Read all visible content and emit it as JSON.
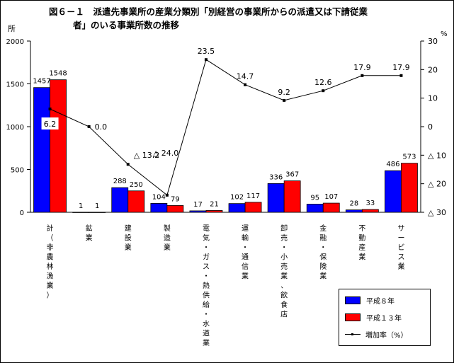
{
  "title": {
    "line1": "図６－１　派遣先事業所の産業分類別「別経営の事業所からの派遣又は下請従業",
    "line2": "者」のいる事業所数の推移"
  },
  "chart_data": {
    "type": "bar",
    "title": "図６－１　派遣先事業所の産業分類別「別経営の事業所からの派遣又は下請従業者」のいる事業所数の推移",
    "categories": [
      "計（非農林漁業）",
      "鉱業",
      "建設業",
      "製造業",
      "電気・ガス・熱供給・水道業",
      "運輸・通信業",
      "卸売・小売業、飲食店",
      "金融・保険業",
      "不動産業",
      "サービス業"
    ],
    "series": [
      {
        "name": "平成８年",
        "type": "bar",
        "color": "#0000ff",
        "axis": "left",
        "values": [
          1457,
          1,
          288,
          104,
          17,
          102,
          336,
          95,
          28,
          486
        ]
      },
      {
        "name": "平成１３年",
        "type": "bar",
        "color": "#ff0000",
        "axis": "left",
        "values": [
          1548,
          1,
          250,
          79,
          21,
          117,
          367,
          107,
          33,
          573
        ]
      },
      {
        "name": "増加率（%）",
        "type": "line",
        "color": "#000000",
        "axis": "right",
        "values": [
          6.2,
          0.0,
          -13.2,
          -24.0,
          23.5,
          14.7,
          9.2,
          12.6,
          17.9,
          17.9
        ],
        "labels": [
          "6.2",
          "0.0",
          "△ 13.2",
          "△ 24.0",
          "23.5",
          "14.7",
          "9.2",
          "12.6",
          "17.9",
          "17.9"
        ]
      }
    ],
    "ylabel": "所",
    "y2label": "%",
    "ylim": [
      0,
      2000
    ],
    "yticks": [
      "0",
      "500",
      "1000",
      "1500",
      "2000"
    ],
    "y2lim": [
      -30,
      30
    ],
    "y2ticks": [
      "△ 30",
      "△ 20",
      "△ 10",
      "0",
      "10",
      "20",
      "30"
    ],
    "y2tick_values": [
      -30,
      -20,
      -10,
      0,
      10,
      20,
      30
    ],
    "legend_position": "bottom-right",
    "grid": false
  }
}
